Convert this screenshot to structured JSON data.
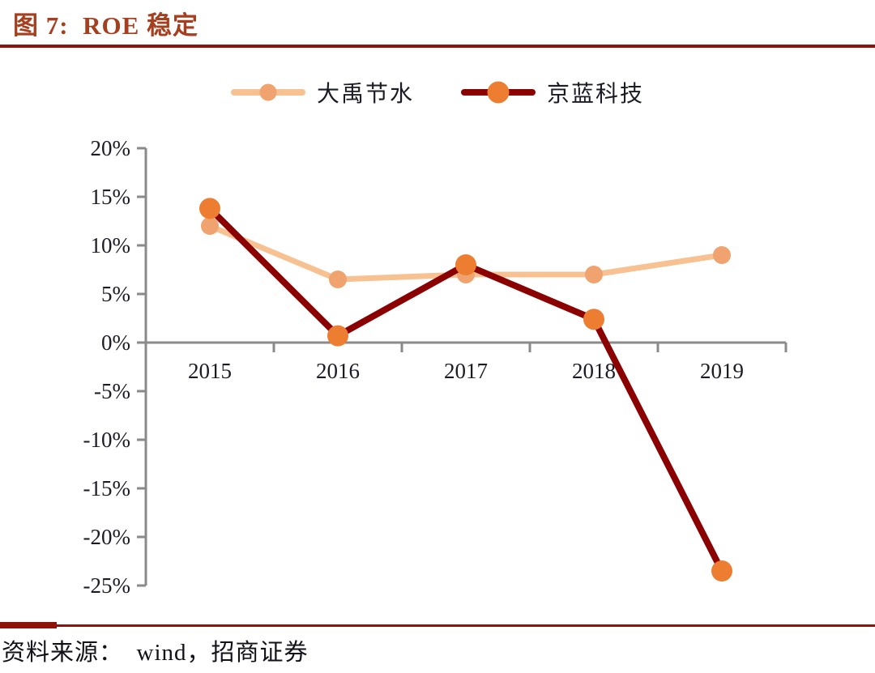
{
  "header": {
    "rule_color": "#8E130B"
  },
  "chart_data": {
    "type": "line",
    "title": "图 7:  ROE 稳定",
    "title_color": "#A4401F",
    "x_categories": [
      "2015",
      "2016",
      "2017",
      "2018",
      "2019"
    ],
    "series": [
      {
        "name": "大禹节水",
        "values": [
          12,
          6.5,
          7,
          7,
          9
        ],
        "line_color": "#F8C191",
        "marker_color": "#F0A36E",
        "line_width": 7,
        "marker_radius": 11
      },
      {
        "name": "京蓝科技",
        "values": [
          13.8,
          0.7,
          8,
          2.4,
          -23.5
        ],
        "line_color": "#8B0000",
        "marker_color": "#ED7D31",
        "line_width": 8,
        "marker_radius": 13
      }
    ],
    "ylim": [
      -25,
      20
    ],
    "ytick_step": 5,
    "ytick_labels": [
      "20%",
      "15%",
      "10%",
      "5%",
      "0%",
      "-5%",
      "-10%",
      "-15%",
      "-20%",
      "-25%"
    ],
    "xlabel": "",
    "ylabel": "",
    "grid": false,
    "legend_position": "top-center",
    "axis_color": "#8A8A8A",
    "tick_label_color": "#1B1B26"
  },
  "footer": {
    "source_text": "资料来源：  wind，招商证券",
    "rule_color": "#8E130B"
  }
}
